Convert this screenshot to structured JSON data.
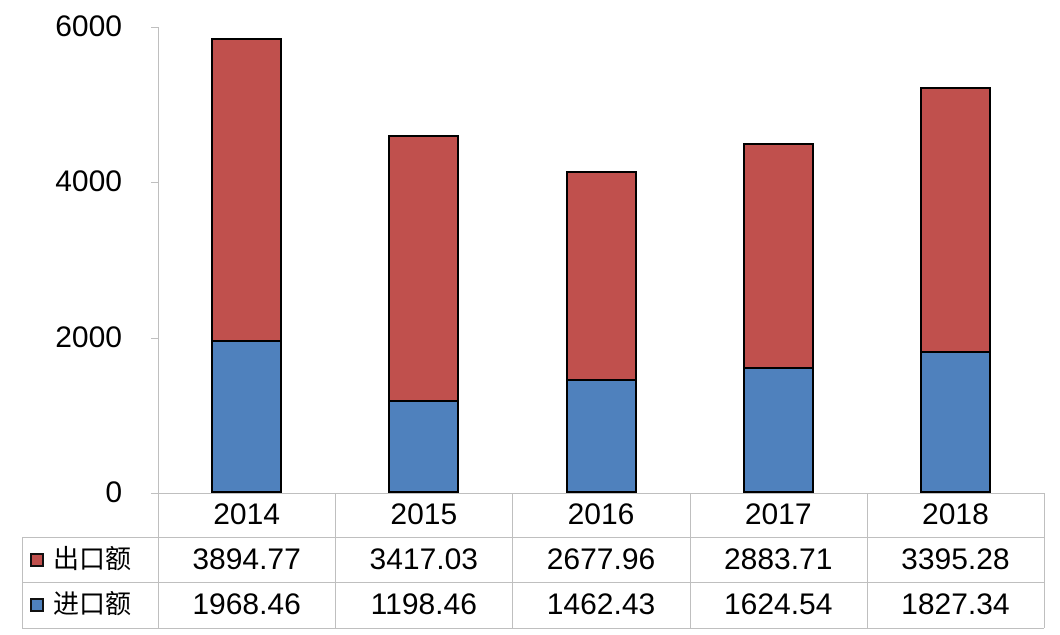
{
  "chart_data": {
    "type": "bar",
    "stacked": true,
    "title": "",
    "xlabel": "",
    "ylabel": "",
    "categories": [
      "2014",
      "2015",
      "2016",
      "2017",
      "2018"
    ],
    "series": [
      {
        "key": "export",
        "name": "出口额",
        "color": "#C0504D",
        "values": [
          3894.77,
          3417.03,
          2677.96,
          2883.71,
          3395.28
        ]
      },
      {
        "key": "import",
        "name": "进口额",
        "color": "#4F81BD",
        "values": [
          1968.46,
          1198.46,
          1462.43,
          1624.54,
          1827.34
        ]
      }
    ],
    "stack_bottom_to_top": [
      "import",
      "export"
    ],
    "ylim": [
      0,
      6000
    ],
    "yticks": [
      0,
      2000,
      4000,
      6000
    ],
    "decimals": 2,
    "grid": false,
    "legend_position": "data-table-left-column",
    "bar_border_color": "#000000",
    "axis_color": "#BFBFBF",
    "text_color": "#000000",
    "background_color": "#FFFFFF"
  }
}
